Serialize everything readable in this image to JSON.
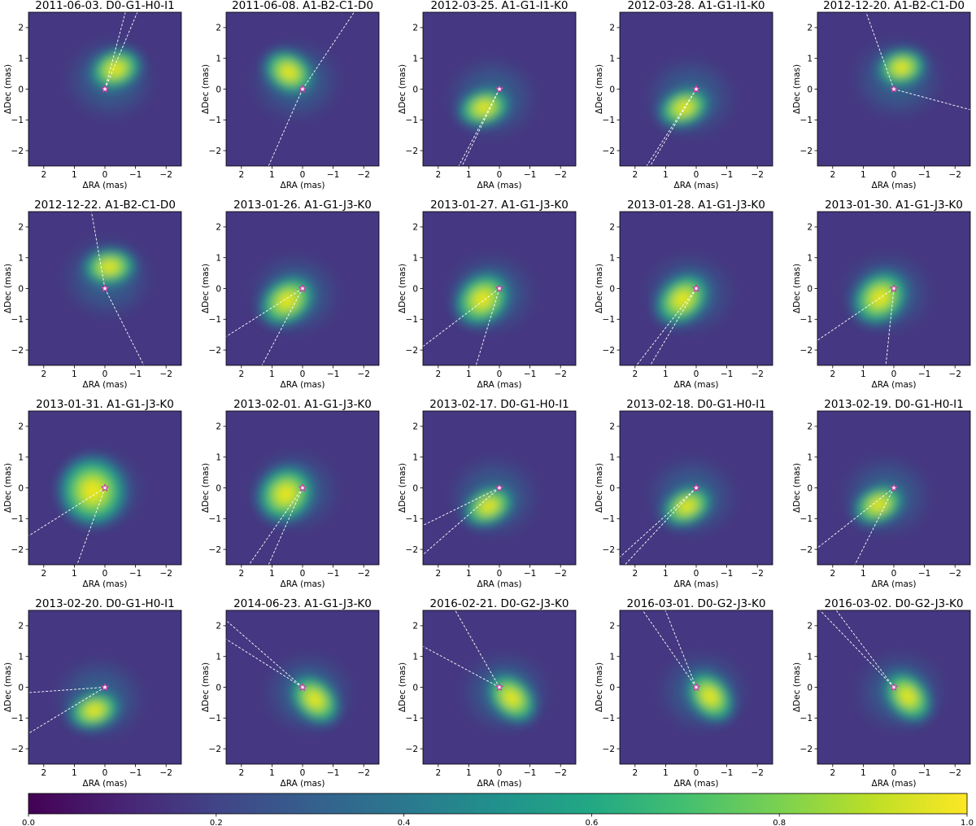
{
  "chart_data": {
    "type": "heatmap",
    "description_of_axes": {
      "xlabel": "ΔRA (mas)",
      "ylabel": "ΔDec (mas)",
      "xlim": [
        2.5,
        -2.5
      ],
      "ylim": [
        -2.5,
        2.5
      ],
      "xticks": [
        "2",
        "1",
        "0",
        "−1",
        "−2"
      ],
      "yticks": [
        "2",
        "1",
        "0",
        "−1",
        "−2"
      ]
    },
    "colorbar": {
      "colormap": "viridis",
      "range": [
        0.0,
        1.0
      ],
      "ticks": [
        "0.0",
        "0.2",
        "0.4",
        "0.6",
        "0.8",
        "1.0"
      ]
    },
    "star_marker": {
      "ra": 0,
      "dec": 0
    },
    "panels": [
      {
        "title": "2011-06-03. D0-G1-H0-I1",
        "blob": {
          "ra": -0.35,
          "dec": 0.65,
          "width": 0.75,
          "height": 0.48,
          "angle_deg": -20
        },
        "baseline_angles_deg": [
          15,
          23
        ]
      },
      {
        "title": "2011-06-08. A1-B2-C1-D0",
        "blob": {
          "ra": 0.45,
          "dec": 0.55,
          "width": 0.75,
          "height": 0.5,
          "angle_deg": 30
        },
        "baseline_angles_deg": [
          34,
          204
        ]
      },
      {
        "title": "2012-03-25. A1-G1-I1-K0",
        "blob": {
          "ra": 0.5,
          "dec": -0.6,
          "width": 0.75,
          "height": 0.45,
          "angle_deg": -15
        },
        "baseline_angles_deg": [
          206,
          208
        ]
      },
      {
        "title": "2012-03-28. A1-G1-I1-K0",
        "blob": {
          "ra": 0.4,
          "dec": -0.6,
          "width": 0.75,
          "height": 0.45,
          "angle_deg": -20
        },
        "baseline_angles_deg": [
          211,
          213
        ]
      },
      {
        "title": "2012-12-20. A1-B2-C1-D0",
        "blob": {
          "ra": -0.25,
          "dec": 0.7,
          "width": 0.7,
          "height": 0.45,
          "angle_deg": -10
        },
        "baseline_angles_deg": [
          -20,
          105
        ]
      },
      {
        "title": "2012-12-22. A1-B2-C1-D0",
        "blob": {
          "ra": -0.15,
          "dec": 0.7,
          "width": 0.75,
          "height": 0.45,
          "angle_deg": -5
        },
        "baseline_angles_deg": [
          -10,
          153
        ]
      },
      {
        "title": "2013-01-26. A1-G1-J3-K0",
        "blob": {
          "ra": 0.5,
          "dec": -0.4,
          "width": 0.85,
          "height": 0.55,
          "angle_deg": -35
        },
        "baseline_angles_deg": [
          208,
          238
        ]
      },
      {
        "title": "2013-01-27. A1-G1-J3-K0",
        "blob": {
          "ra": 0.55,
          "dec": -0.35,
          "width": 0.85,
          "height": 0.6,
          "angle_deg": -40
        },
        "baseline_angles_deg": [
          197,
          233
        ]
      },
      {
        "title": "2013-01-28. A1-G1-J3-K0",
        "blob": {
          "ra": 0.45,
          "dec": -0.35,
          "width": 0.85,
          "height": 0.55,
          "angle_deg": -40
        },
        "baseline_angles_deg": [
          211,
          218
        ]
      },
      {
        "title": "2013-01-30. A1-G1-J3-K0",
        "blob": {
          "ra": 0.45,
          "dec": -0.3,
          "width": 0.85,
          "height": 0.6,
          "angle_deg": -40
        },
        "baseline_angles_deg": [
          186,
          236
        ]
      },
      {
        "title": "2013-01-31. A1-G1-J3-K0",
        "blob": {
          "ra": 0.4,
          "dec": -0.1,
          "width": 0.95,
          "height": 0.85,
          "angle_deg": -20
        },
        "baseline_angles_deg": [
          200,
          238
        ]
      },
      {
        "title": "2013-02-01. A1-G1-J3-K0",
        "blob": {
          "ra": 0.55,
          "dec": -0.2,
          "width": 0.85,
          "height": 0.65,
          "angle_deg": -40
        },
        "baseline_angles_deg": [
          204,
          215
        ]
      },
      {
        "title": "2013-02-17. D0-G1-H0-I1",
        "blob": {
          "ra": 0.35,
          "dec": -0.6,
          "width": 0.75,
          "height": 0.45,
          "angle_deg": -25
        },
        "baseline_angles_deg": [
          229,
          244
        ]
      },
      {
        "title": "2013-02-18. D0-G1-H0-I1",
        "blob": {
          "ra": 0.3,
          "dec": -0.6,
          "width": 0.75,
          "height": 0.45,
          "angle_deg": -25
        },
        "baseline_angles_deg": [
          223,
          228
        ]
      },
      {
        "title": "2013-02-19. D0-G1-H0-I1",
        "blob": {
          "ra": 0.5,
          "dec": -0.55,
          "width": 0.75,
          "height": 0.45,
          "angle_deg": -25
        },
        "baseline_angles_deg": [
          207,
          232
        ]
      },
      {
        "title": "2013-02-20. D0-G1-H0-I1",
        "blob": {
          "ra": 0.35,
          "dec": -0.75,
          "width": 0.75,
          "height": 0.45,
          "angle_deg": -15
        },
        "baseline_angles_deg": [
          239,
          266
        ]
      },
      {
        "title": "2014-06-23. A1-G1-J3-K0",
        "blob": {
          "ra": -0.4,
          "dec": -0.4,
          "width": 0.8,
          "height": 0.5,
          "angle_deg": 45
        },
        "baseline_angles_deg": [
          -49,
          -58
        ]
      },
      {
        "title": "2016-02-21. D0-G2-J3-K0",
        "blob": {
          "ra": -0.4,
          "dec": -0.35,
          "width": 0.8,
          "height": 0.5,
          "angle_deg": 45
        },
        "baseline_angles_deg": [
          -30,
          -62
        ]
      },
      {
        "title": "2016-03-01. D0-G2-J3-K0",
        "blob": {
          "ra": -0.45,
          "dec": -0.3,
          "width": 0.8,
          "height": 0.5,
          "angle_deg": 50
        },
        "baseline_angles_deg": [
          -22,
          -35
        ]
      },
      {
        "title": "2016-03-02. D0-G2-J3-K0",
        "blob": {
          "ra": -0.45,
          "dec": -0.3,
          "width": 0.8,
          "height": 0.5,
          "angle_deg": 50
        },
        "baseline_angles_deg": [
          -37,
          -44
        ]
      }
    ]
  }
}
